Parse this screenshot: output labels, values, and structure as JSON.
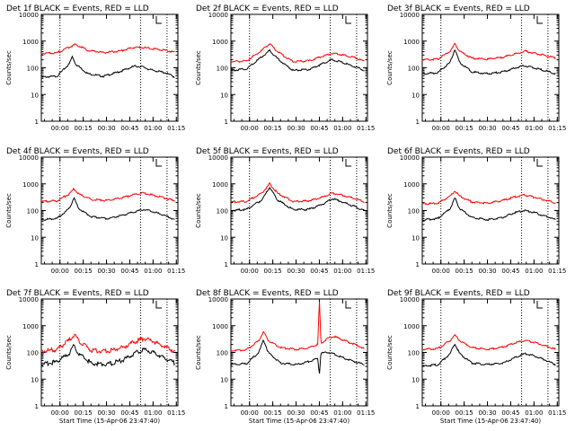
{
  "chart_data": [
    {
      "type": "line",
      "title": "Det 1f BLACK = Events, RED = LLD",
      "ylabel": "Counts/sec",
      "xlabel": "",
      "scale_y": "log",
      "ylim": [
        1,
        10000
      ],
      "y_ticks": [
        "1",
        "10",
        "100",
        "1000",
        "10000"
      ],
      "x_ticks": [
        "00:00",
        "00:15",
        "00:30",
        "00:45",
        "01:00",
        "01:15"
      ],
      "series": [
        {
          "name": "Events",
          "color": "#000000",
          "x_minutes": [
            0,
            10,
            18,
            20,
            22,
            30,
            40,
            50,
            60,
            65,
            70,
            80,
            86
          ],
          "values": [
            45,
            48,
            140,
            270,
            140,
            60,
            48,
            70,
            115,
            110,
            85,
            65,
            45
          ]
        },
        {
          "name": "LLD",
          "color": "#ff0000",
          "x_minutes": [
            0,
            10,
            18,
            22,
            30,
            40,
            50,
            60,
            65,
            70,
            80,
            86
          ],
          "values": [
            350,
            360,
            600,
            750,
            450,
            370,
            420,
            580,
            580,
            530,
            450,
            380
          ]
        }
      ]
    },
    {
      "type": "line",
      "title": "Det 2f BLACK = Events, RED = LLD",
      "ylabel": "Counts/sec",
      "xlabel": "",
      "scale_y": "log",
      "ylim": [
        1,
        10000
      ],
      "y_ticks": [
        "1",
        "10",
        "100",
        "1000",
        "10000"
      ],
      "x_ticks": [
        "00:00",
        "00:15",
        "00:30",
        "00:45",
        "01:00",
        "01:15"
      ],
      "series": [
        {
          "name": "Events",
          "color": "#000000",
          "x_minutes": [
            0,
            10,
            20,
            25,
            30,
            40,
            50,
            60,
            65,
            70,
            80,
            86
          ],
          "values": [
            80,
            90,
            260,
            450,
            220,
            80,
            85,
            150,
            200,
            170,
            110,
            80
          ]
        },
        {
          "name": "LLD",
          "color": "#ff0000",
          "x_minutes": [
            0,
            10,
            20,
            25,
            30,
            40,
            50,
            60,
            65,
            70,
            80,
            86
          ],
          "values": [
            170,
            180,
            450,
            800,
            400,
            170,
            180,
            280,
            350,
            320,
            240,
            170
          ]
        }
      ]
    },
    {
      "type": "line",
      "title": "Det 3f BLACK = Events, RED = LLD",
      "ylabel": "Counts/sec",
      "xlabel": "",
      "scale_y": "log",
      "ylim": [
        1,
        10000
      ],
      "y_ticks": [
        "1",
        "10",
        "100",
        "1000",
        "10000"
      ],
      "x_ticks": [
        "00:00",
        "00:15",
        "00:30",
        "00:45",
        "01:00",
        "01:15"
      ],
      "series": [
        {
          "name": "Events",
          "color": "#000000",
          "x_minutes": [
            0,
            10,
            18,
            21,
            24,
            32,
            42,
            52,
            60,
            66,
            72,
            80,
            86
          ],
          "values": [
            60,
            65,
            160,
            500,
            160,
            70,
            60,
            70,
            100,
            120,
            100,
            75,
            60
          ]
        },
        {
          "name": "LLD",
          "color": "#ff0000",
          "x_minutes": [
            0,
            10,
            18,
            21,
            24,
            32,
            42,
            52,
            60,
            66,
            72,
            80,
            86
          ],
          "values": [
            200,
            210,
            420,
            800,
            420,
            230,
            210,
            250,
            330,
            420,
            360,
            280,
            230
          ]
        }
      ]
    },
    {
      "type": "line",
      "title": "Det 4f BLACK = Events, RED = LLD",
      "ylabel": "Counts/sec",
      "xlabel": "",
      "scale_y": "log",
      "ylim": [
        1,
        10000
      ],
      "y_ticks": [
        "1",
        "10",
        "100",
        "1000",
        "10000"
      ],
      "x_ticks": [
        "00:00",
        "00:15",
        "00:30",
        "00:45",
        "01:00",
        "01:15"
      ],
      "series": [
        {
          "name": "Events",
          "color": "#000000",
          "x_minutes": [
            0,
            10,
            18,
            21,
            24,
            32,
            42,
            52,
            60,
            66,
            72,
            80,
            86
          ],
          "values": [
            45,
            50,
            120,
            300,
            120,
            60,
            50,
            65,
            90,
            110,
            90,
            65,
            45
          ]
        },
        {
          "name": "LLD",
          "color": "#ff0000",
          "x_minutes": [
            0,
            10,
            18,
            21,
            24,
            32,
            42,
            52,
            60,
            66,
            72,
            80,
            86
          ],
          "values": [
            220,
            230,
            420,
            650,
            420,
            260,
            240,
            300,
            400,
            450,
            380,
            290,
            230
          ]
        }
      ]
    },
    {
      "type": "line",
      "title": "Det 5f BLACK = Events, RED = LLD",
      "ylabel": "Counts/sec",
      "xlabel": "",
      "scale_y": "log",
      "ylim": [
        1,
        10000
      ],
      "y_ticks": [
        "1",
        "10",
        "100",
        "1000",
        "10000"
      ],
      "x_ticks": [
        "00:00",
        "00:15",
        "00:30",
        "00:45",
        "01:00",
        "01:15"
      ],
      "series": [
        {
          "name": "Events",
          "color": "#000000",
          "x_minutes": [
            0,
            10,
            20,
            25,
            30,
            40,
            50,
            60,
            65,
            70,
            80,
            86
          ],
          "values": [
            100,
            110,
            250,
            750,
            250,
            110,
            110,
            180,
            280,
            230,
            140,
            100
          ]
        },
        {
          "name": "LLD",
          "color": "#ff0000",
          "x_minutes": [
            0,
            10,
            20,
            25,
            30,
            40,
            50,
            60,
            65,
            70,
            80,
            86
          ],
          "values": [
            210,
            220,
            450,
            1000,
            450,
            220,
            230,
            330,
            450,
            400,
            280,
            210
          ]
        }
      ]
    },
    {
      "type": "line",
      "title": "Det 6f BLACK = Events, RED = LLD",
      "ylabel": "Counts/sec",
      "xlabel": "",
      "scale_y": "log",
      "ylim": [
        1,
        10000
      ],
      "y_ticks": [
        "1",
        "10",
        "100",
        "1000",
        "10000"
      ],
      "x_ticks": [
        "00:00",
        "00:15",
        "00:30",
        "00:45",
        "01:00",
        "01:15"
      ],
      "series": [
        {
          "name": "Events",
          "color": "#000000",
          "x_minutes": [
            0,
            10,
            18,
            21,
            24,
            32,
            42,
            52,
            60,
            66,
            72,
            80,
            86
          ],
          "values": [
            45,
            50,
            120,
            300,
            120,
            55,
            45,
            55,
            85,
            100,
            85,
            60,
            45
          ]
        },
        {
          "name": "LLD",
          "color": "#ff0000",
          "x_minutes": [
            0,
            10,
            18,
            21,
            24,
            32,
            42,
            52,
            60,
            66,
            72,
            80,
            86
          ],
          "values": [
            180,
            190,
            350,
            550,
            350,
            210,
            190,
            240,
            330,
            380,
            320,
            240,
            190
          ]
        }
      ]
    },
    {
      "type": "line",
      "title": "Det 7f BLACK = Events, RED = LLD",
      "ylabel": "Counts/sec",
      "xlabel": "Start Time (15-Apr-06 23:47:40)",
      "scale_y": "log",
      "ylim": [
        1,
        10000
      ],
      "y_ticks": [
        "1",
        "10",
        "100",
        "1000",
        "10000"
      ],
      "x_ticks": [
        "00:00",
        "00:15",
        "00:30",
        "00:45",
        "01:00",
        "01:15"
      ],
      "series": [
        {
          "name": "Events",
          "color": "#000000",
          "x_minutes": [
            0,
            10,
            18,
            21,
            24,
            32,
            42,
            52,
            60,
            66,
            72,
            80,
            86
          ],
          "values": [
            35,
            45,
            90,
            180,
            90,
            40,
            35,
            50,
            90,
            130,
            100,
            60,
            40
          ]
        },
        {
          "name": "LLD",
          "color": "#ff0000",
          "x_minutes": [
            0,
            10,
            18,
            21,
            24,
            32,
            42,
            52,
            60,
            66,
            72,
            80,
            86
          ],
          "values": [
            110,
            130,
            280,
            450,
            280,
            120,
            110,
            150,
            250,
            330,
            260,
            160,
            110
          ]
        }
      ]
    },
    {
      "type": "line",
      "title": "Det 8f BLACK = Events, RED = LLD",
      "ylabel": "Counts/sec",
      "xlabel": "Start Time (15-Apr-06 23:47:40)",
      "scale_y": "log",
      "ylim": [
        1,
        10000
      ],
      "y_ticks": [
        "1",
        "10",
        "100",
        "1000",
        "10000"
      ],
      "x_ticks": [
        "00:00",
        "00:15",
        "00:30",
        "00:45",
        "01:00",
        "01:15"
      ],
      "series": [
        {
          "name": "Events",
          "color": "#000000",
          "x_minutes": [
            0,
            10,
            18,
            21,
            24,
            32,
            42,
            50,
            56,
            57,
            58,
            63,
            66,
            70,
            80,
            86
          ],
          "values": [
            35,
            38,
            100,
            300,
            100,
            40,
            35,
            45,
            60,
            15,
            95,
            100,
            90,
            70,
            45,
            35
          ]
        },
        {
          "name": "LLD",
          "color": "#ff0000",
          "x_minutes": [
            0,
            10,
            18,
            21,
            24,
            32,
            42,
            50,
            56,
            57,
            58,
            63,
            66,
            70,
            80,
            86
          ],
          "values": [
            120,
            125,
            280,
            600,
            280,
            150,
            130,
            150,
            200,
            10000,
            220,
            350,
            400,
            330,
            200,
            140
          ]
        }
      ]
    },
    {
      "type": "line",
      "title": "Det 9f BLACK = Events, RED = LLD",
      "ylabel": "Counts/sec",
      "xlabel": "Start Time (15-Apr-06 23:47:40)",
      "scale_y": "log",
      "ylim": [
        1,
        10000
      ],
      "y_ticks": [
        "1",
        "10",
        "100",
        "1000",
        "10000"
      ],
      "x_ticks": [
        "00:00",
        "00:15",
        "00:30",
        "00:45",
        "01:00",
        "01:15"
      ],
      "series": [
        {
          "name": "Events",
          "color": "#000000",
          "x_minutes": [
            0,
            10,
            18,
            21,
            24,
            32,
            42,
            52,
            60,
            66,
            72,
            80,
            86
          ],
          "values": [
            30,
            35,
            90,
            220,
            90,
            40,
            35,
            40,
            65,
            90,
            75,
            50,
            35
          ]
        },
        {
          "name": "LLD",
          "color": "#ff0000",
          "x_minutes": [
            0,
            10,
            18,
            21,
            24,
            32,
            42,
            52,
            60,
            66,
            72,
            80,
            86
          ],
          "values": [
            130,
            140,
            280,
            450,
            280,
            150,
            130,
            160,
            230,
            280,
            240,
            170,
            130
          ]
        }
      ]
    }
  ]
}
